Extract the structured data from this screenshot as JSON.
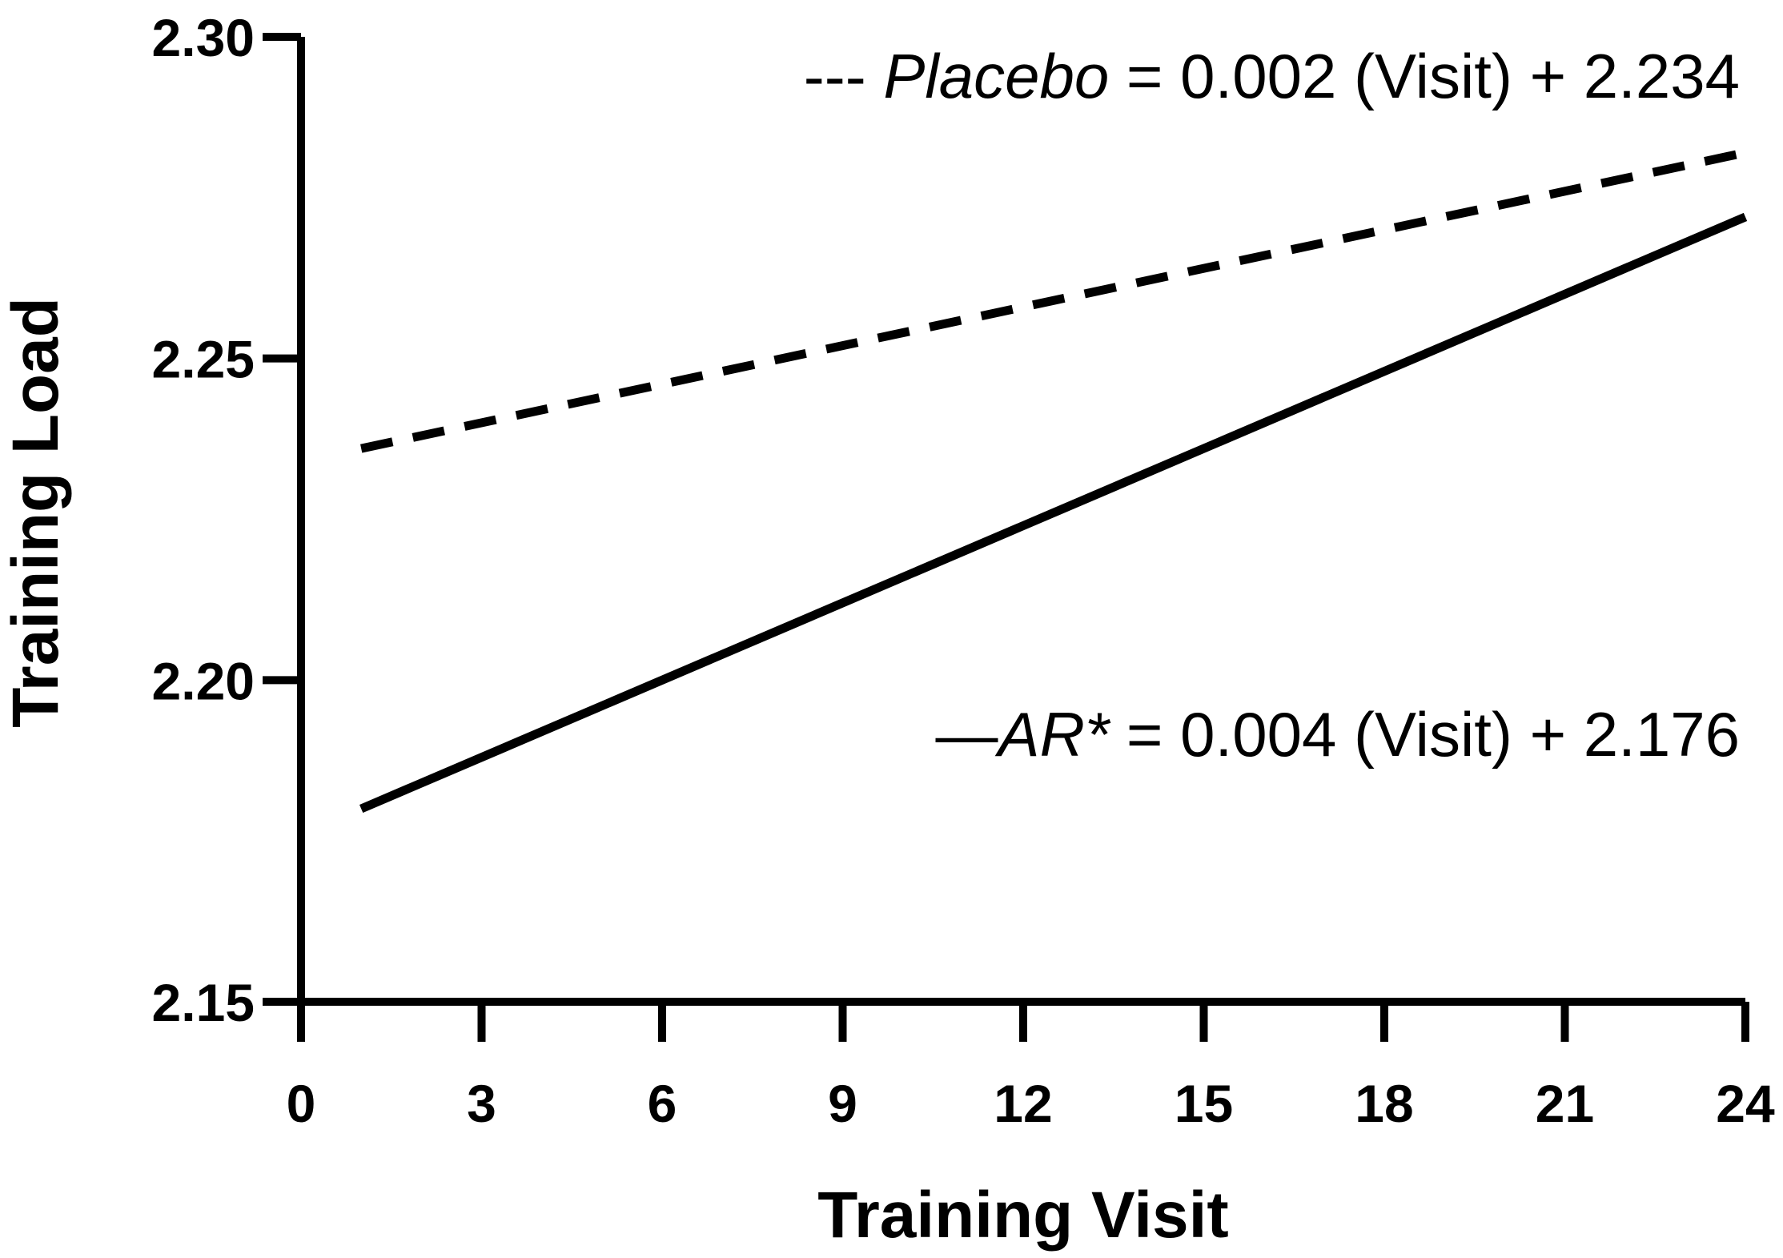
{
  "chart_data": {
    "type": "line",
    "title": "",
    "xlabel": "Training Visit",
    "ylabel": "Training Load",
    "xlim": [
      0,
      24
    ],
    "ylim": [
      2.15,
      2.3
    ],
    "xticks": [
      "0",
      "3",
      "6",
      "9",
      "12",
      "15",
      "18",
      "21",
      "24"
    ],
    "yticks": [
      "2.15",
      "2.20",
      "2.25",
      "2.30"
    ],
    "series": [
      {
        "name": "Placebo",
        "style": "dashed",
        "slope": 0.002,
        "intercept": 2.234,
        "x": [
          1,
          24
        ],
        "y": [
          2.236,
          2.282
        ]
      },
      {
        "name": "AR*",
        "style": "solid",
        "slope": 0.004,
        "intercept": 2.176,
        "x": [
          1,
          24
        ],
        "y": [
          2.18,
          2.272
        ]
      }
    ],
    "annotations": [
      {
        "marker": "---",
        "name": "Placebo",
        "equation": " = 0.002 (Visit) + 2.234"
      },
      {
        "marker": "—",
        "name": "AR*",
        "equation": " = 0.004 (Visit) + 2.176"
      }
    ]
  }
}
